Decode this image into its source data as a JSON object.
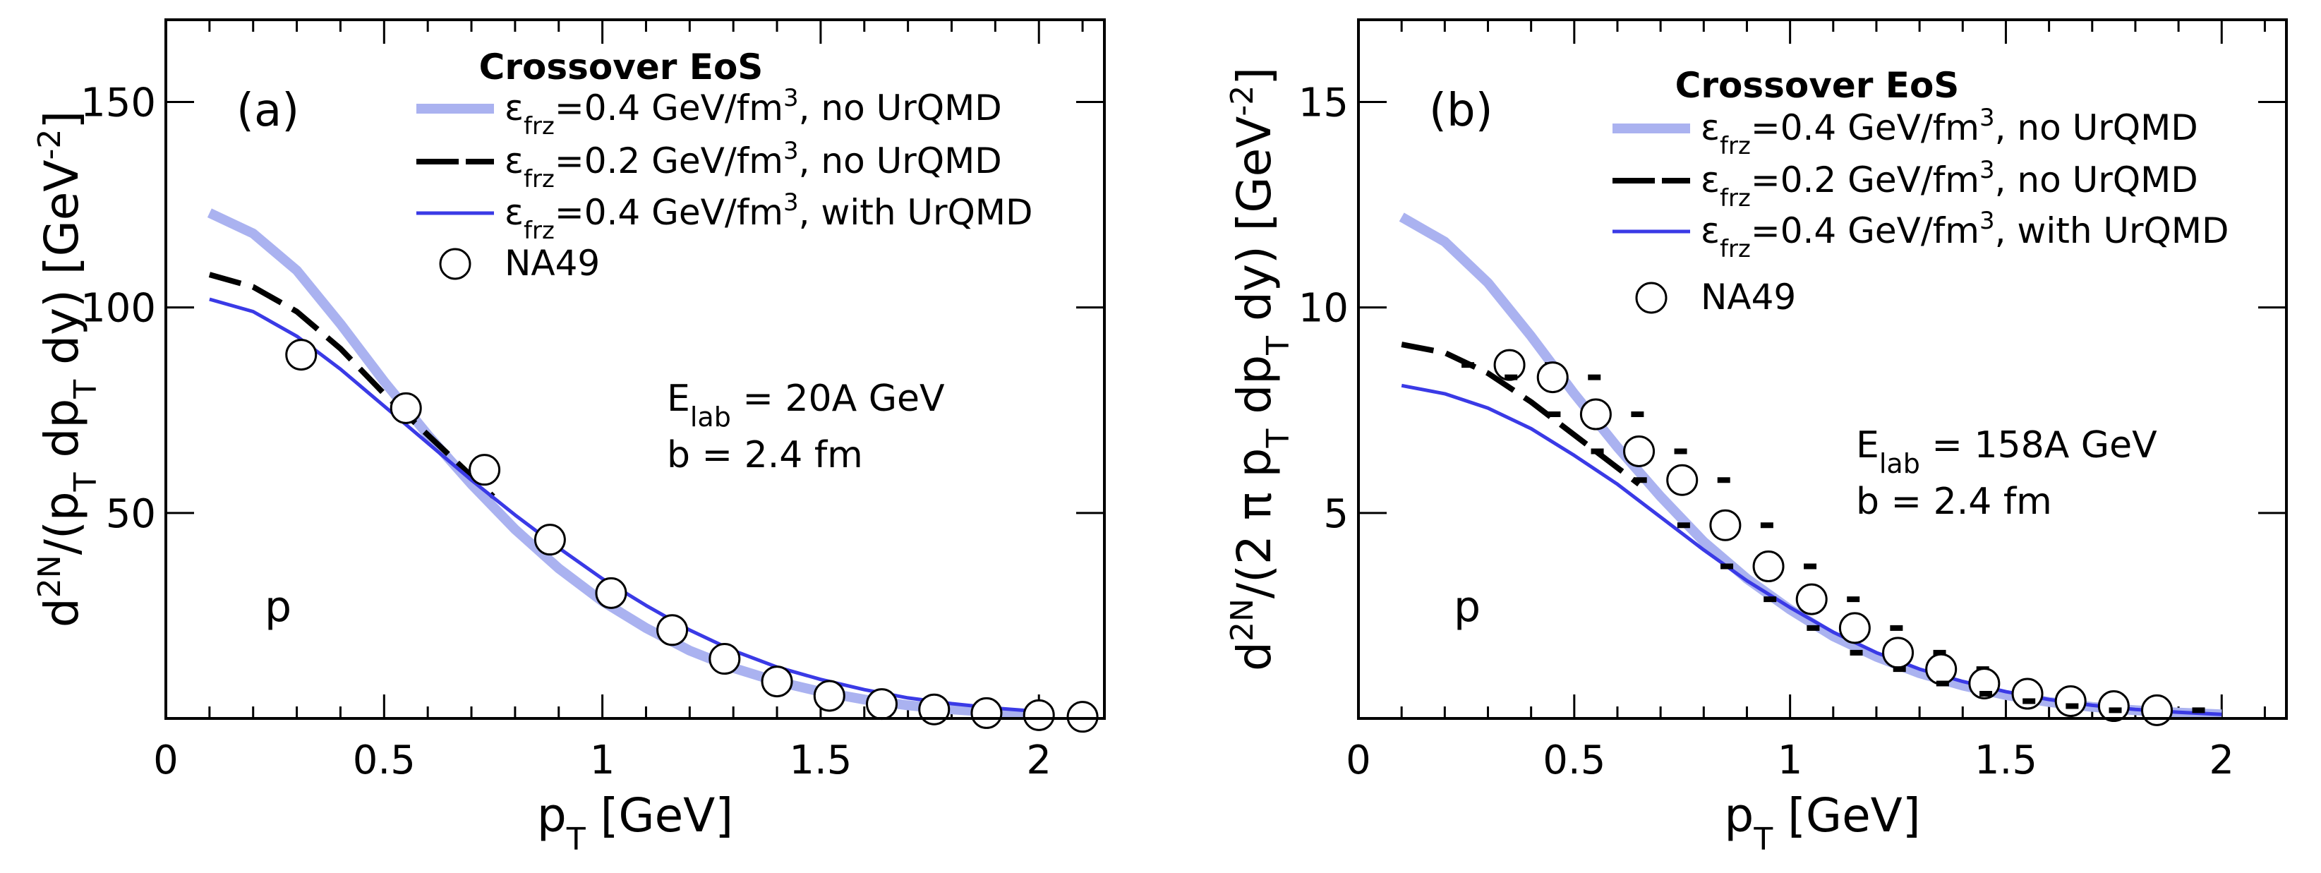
{
  "chart_data": [
    {
      "type": "line",
      "panel_label": "(a)",
      "xlabel": "p_T [GeV]",
      "ylabel": "d^2N/(p_T dp_T dy)  [GeV^-2]",
      "xlim": [
        0,
        2.15
      ],
      "ylim": [
        0,
        170
      ],
      "xticks": [
        0,
        0.5,
        1,
        1.5,
        2
      ],
      "xtick_labels": [
        "0",
        "0.5",
        "1",
        "1.5",
        "2"
      ],
      "yticks": [
        50,
        100,
        150
      ],
      "ytick_labels": [
        "50",
        "100",
        "150"
      ],
      "legend_title": "Crossover EoS",
      "annotation_energy": "E_lab = 20A GeV",
      "annotation_b": "b = 2.4 fm",
      "particle": "p",
      "series": [
        {
          "name": "ε_frz=0.4 GeV/fm^3, no UrQMD",
          "color": "#aab2f0",
          "style": "thick",
          "x": [
            0.1,
            0.2,
            0.3,
            0.4,
            0.5,
            0.6,
            0.7,
            0.8,
            0.9,
            1.0,
            1.1,
            1.2,
            1.3,
            1.4,
            1.5,
            1.6,
            1.7,
            1.8,
            1.9,
            2.0
          ],
          "y": [
            123,
            118,
            109,
            96,
            82,
            69,
            57,
            46,
            36.5,
            28.5,
            22,
            16.5,
            12.3,
            9,
            6.5,
            4.6,
            3.2,
            2.2,
            1.5,
            1.0
          ]
        },
        {
          "name": "ε_frz=0.2 GeV/fm^3, no UrQMD",
          "color": "#000000",
          "style": "dashed",
          "x": [
            0.1,
            0.2,
            0.3,
            0.4,
            0.5,
            0.6,
            0.7,
            0.75
          ],
          "y": [
            108,
            105,
            99,
            90,
            79,
            69,
            59,
            54
          ]
        },
        {
          "name": "ε_frz=0.4 GeV/fm^3, with UrQMD",
          "color": "#3a3ae6",
          "style": "solid",
          "x": [
            0.1,
            0.2,
            0.3,
            0.4,
            0.5,
            0.6,
            0.7,
            0.8,
            0.9,
            1.0,
            1.1,
            1.2,
            1.3,
            1.4,
            1.5,
            1.6,
            1.7,
            1.8,
            1.9,
            2.0
          ],
          "y": [
            102,
            99,
            93,
            85,
            76,
            67,
            58,
            49.5,
            41.5,
            34,
            27.5,
            21.5,
            16.5,
            12.5,
            9.5,
            7,
            5,
            3.6,
            2.5,
            1.7
          ]
        },
        {
          "name": "NA49",
          "color": "#000000",
          "style": "markers",
          "x": [
            0.31,
            0.55,
            0.73,
            0.88,
            1.02,
            1.16,
            1.28,
            1.4,
            1.52,
            1.64,
            1.76,
            1.88,
            2.0,
            2.1
          ],
          "y": [
            88.5,
            75.5,
            60.5,
            43.5,
            30.5,
            21.5,
            14.5,
            9,
            5.5,
            3.5,
            2.2,
            1.3,
            0.8,
            0.4
          ],
          "yerr": [
            0,
            0,
            0,
            0,
            0,
            0,
            0,
            0,
            0,
            0,
            0,
            0,
            0,
            0
          ]
        }
      ]
    },
    {
      "type": "line",
      "panel_label": "(b)",
      "xlabel": "p_T [GeV]",
      "ylabel": "d^2N/(2 π p_T dp_T dy)  [GeV^-2]",
      "xlim": [
        0,
        2.15
      ],
      "ylim": [
        0,
        17
      ],
      "xticks": [
        0,
        0.5,
        1,
        1.5,
        2
      ],
      "xtick_labels": [
        "0",
        "0.5",
        "1",
        "1.5",
        "2"
      ],
      "yticks": [
        5,
        10,
        15
      ],
      "ytick_labels": [
        "5",
        "10",
        "15"
      ],
      "legend_title": "Crossover EoS",
      "annotation_energy": "E_lab = 158A GeV",
      "annotation_b": "b = 2.4 fm",
      "particle": "p",
      "series": [
        {
          "name": "ε_frz=0.4 GeV/fm^3, no UrQMD",
          "color": "#aab2f0",
          "style": "thick",
          "x": [
            0.1,
            0.2,
            0.3,
            0.4,
            0.5,
            0.6,
            0.7,
            0.8,
            0.9,
            1.0,
            1.1,
            1.2,
            1.3,
            1.4,
            1.5,
            1.6,
            1.7,
            1.8,
            1.9,
            2.0
          ],
          "y": [
            12.2,
            11.6,
            10.6,
            9.3,
            7.9,
            6.6,
            5.4,
            4.3,
            3.4,
            2.65,
            2.0,
            1.5,
            1.1,
            0.8,
            0.57,
            0.4,
            0.28,
            0.2,
            0.14,
            0.1
          ]
        },
        {
          "name": "ε_frz=0.2 GeV/fm^3, no UrQMD",
          "color": "#000000",
          "style": "dashed",
          "x": [
            0.1,
            0.2,
            0.3,
            0.4,
            0.5,
            0.6,
            0.65
          ],
          "y": [
            9.1,
            8.9,
            8.4,
            7.7,
            6.9,
            6.1,
            5.7
          ]
        },
        {
          "name": "ε_frz=0.4 GeV/fm^3, with UrQMD",
          "color": "#3a3ae6",
          "style": "solid",
          "x": [
            0.1,
            0.2,
            0.3,
            0.4,
            0.5,
            0.6,
            0.7,
            0.8,
            0.9,
            1.0,
            1.1,
            1.2,
            1.3,
            1.4,
            1.5,
            1.6,
            1.7,
            1.8,
            1.9,
            2.0
          ],
          "y": [
            8.1,
            7.9,
            7.55,
            7.05,
            6.4,
            5.7,
            4.9,
            4.1,
            3.35,
            2.7,
            2.1,
            1.6,
            1.2,
            0.9,
            0.65,
            0.46,
            0.32,
            0.22,
            0.15,
            0.1
          ]
        },
        {
          "name": "NA49",
          "color": "#000000",
          "style": "markers",
          "x": [
            0.35,
            0.45,
            0.55,
            0.65,
            0.75,
            0.85,
            0.95,
            1.05,
            1.15,
            1.25,
            1.35,
            1.45,
            1.55,
            1.65,
            1.75,
            1.85
          ],
          "y": [
            8.6,
            8.3,
            7.4,
            6.5,
            5.8,
            4.7,
            3.7,
            2.9,
            2.2,
            1.6,
            1.2,
            0.85,
            0.6,
            0.42,
            0.3,
            0.2
          ],
          "yerr": [
            0,
            0,
            0,
            0,
            0,
            0,
            0,
            0,
            0,
            0,
            0,
            0,
            0,
            0,
            0,
            0
          ]
        }
      ]
    }
  ]
}
